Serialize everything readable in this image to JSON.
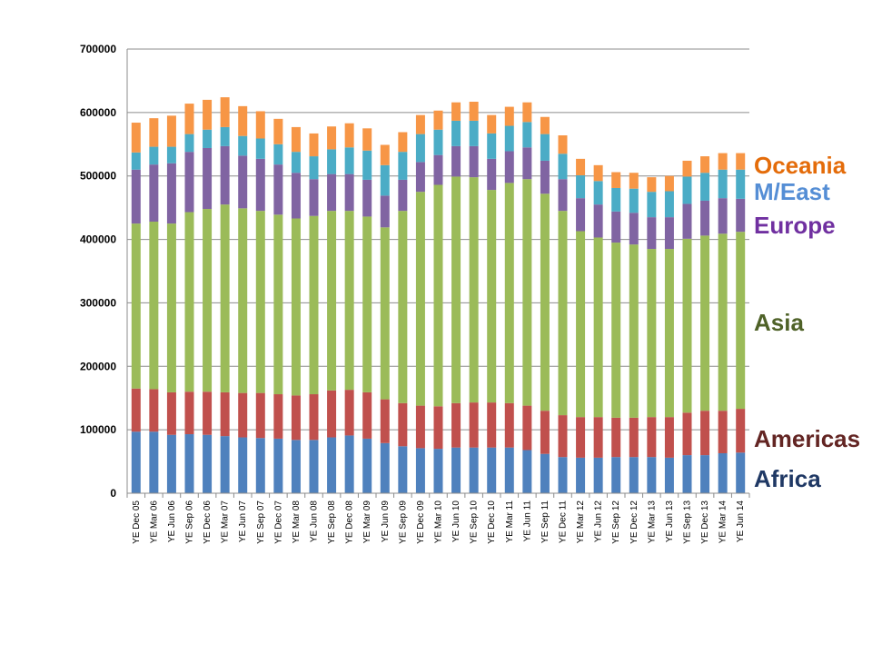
{
  "chart_data": {
    "type": "bar",
    "stacked": true,
    "title": "",
    "xlabel": "",
    "ylabel": "",
    "ylim": [
      0,
      700000
    ],
    "yticks": [
      0,
      100000,
      200000,
      300000,
      400000,
      500000,
      600000,
      700000
    ],
    "grid": true,
    "legend": "right",
    "categories": [
      "YE Dec 05",
      "YE Mar 06",
      "YE Jun 06",
      "YE Sep 06",
      "YE Dec 06",
      "YE Mar 07",
      "YE Jun 07",
      "YE Sep 07",
      "YE Dec 07",
      "YE Mar 08",
      "YE Jun 08",
      "YE Sep 08",
      "YE Dec 08",
      "YE Mar 09",
      "YE Jun 09",
      "YE Sep 09",
      "YE Dec 09",
      "YE Mar 10",
      "YE Jun 10",
      "YE Sep 10",
      "YE Dec 10",
      "YE Mar 11",
      "YE Jun 11",
      "YE Sep 11",
      "YE Dec 11",
      "YE Mar 12",
      "YE Jun 12",
      "YE Sep 12",
      "YE Dec 12",
      "YE Mar 13",
      "YE Jun 13",
      "YE Sep 13",
      "YE Dec 13",
      "YE Mar 14",
      "YE Jun 14"
    ],
    "series": [
      {
        "name": "Africa",
        "color": "#4f81bd",
        "values": [
          97000,
          97000,
          92000,
          93000,
          92000,
          90000,
          88000,
          87000,
          86000,
          84000,
          84000,
          88000,
          91000,
          86000,
          79000,
          74000,
          71000,
          70000,
          72000,
          72000,
          72000,
          72000,
          68000,
          62000,
          57000,
          56000,
          56000,
          57000,
          57000,
          57000,
          56000,
          60000,
          60000,
          63000,
          64000
        ]
      },
      {
        "name": "Americas",
        "color": "#c0504d",
        "values": [
          68000,
          67000,
          67000,
          67000,
          68000,
          69000,
          70000,
          71000,
          70000,
          70000,
          72000,
          74000,
          72000,
          73000,
          69000,
          68000,
          67000,
          67000,
          70000,
          71000,
          71000,
          70000,
          70000,
          68000,
          66000,
          64000,
          64000,
          62000,
          62000,
          63000,
          64000,
          67000,
          70000,
          67000,
          69000
        ]
      },
      {
        "name": "Asia",
        "color": "#9bbb59",
        "values": [
          260000,
          264000,
          266000,
          283000,
          288000,
          296000,
          291000,
          287000,
          283000,
          279000,
          281000,
          283000,
          282000,
          277000,
          271000,
          303000,
          337000,
          349000,
          357000,
          355000,
          335000,
          347000,
          357000,
          342000,
          322000,
          293000,
          283000,
          276000,
          273000,
          265000,
          265000,
          274000,
          276000,
          279000,
          279000
        ]
      },
      {
        "name": "Europe",
        "color": "#8064a2",
        "values": [
          85000,
          90000,
          95000,
          95000,
          96000,
          92000,
          83000,
          82000,
          79000,
          72000,
          58000,
          58000,
          58000,
          58000,
          50000,
          49000,
          47000,
          47000,
          48000,
          49000,
          49000,
          50000,
          50000,
          52000,
          50000,
          52000,
          52000,
          49000,
          50000,
          50000,
          50000,
          55000,
          55000,
          56000,
          52000
        ]
      },
      {
        "name": "M/East",
        "color": "#4bacc6",
        "values": [
          27000,
          28000,
          26000,
          28000,
          29000,
          30000,
          31000,
          32000,
          32000,
          33000,
          36000,
          39000,
          42000,
          46000,
          48000,
          44000,
          44000,
          40000,
          40000,
          40000,
          40000,
          40000,
          40000,
          42000,
          40000,
          36000,
          37000,
          37000,
          38000,
          40000,
          41000,
          43000,
          44000,
          45000,
          46000
        ]
      },
      {
        "name": "Oceania",
        "color": "#f79646",
        "values": [
          47000,
          45000,
          49000,
          48000,
          47000,
          47000,
          47000,
          43000,
          40000,
          39000,
          36000,
          36000,
          38000,
          35000,
          32000,
          31000,
          30000,
          30000,
          29000,
          30000,
          29000,
          30000,
          31000,
          27000,
          29000,
          26000,
          25000,
          25000,
          25000,
          23000,
          24000,
          25000,
          26000,
          26000,
          26000
        ]
      }
    ]
  }
}
